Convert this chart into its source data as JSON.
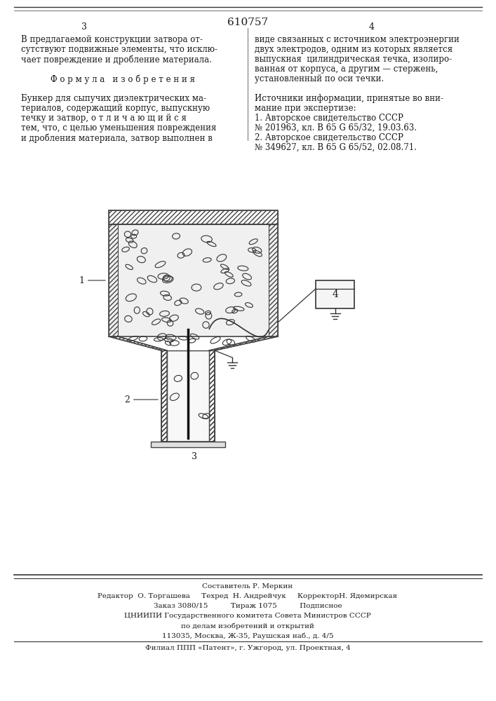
{
  "title_number": "610757",
  "page_left": "3",
  "page_right": "4",
  "text_left_col": [
    "В предлагаемой конструкции затвора от-",
    "сутствуют подвижные элементы, что исклю-",
    "чает повреждение и дробление материала.",
    "",
    "Ф о р м у л а   и з о б р е т е н и я",
    "",
    "Бункер для сыпучих диэлектрических ма-",
    "териалов, содержащий корпус, выпускную",
    "течку и затвор, о т л и ч а ю щ и й с я",
    "тем, что, с целью уменьшения повреждения",
    "и дробления материала, затвор выполнен в"
  ],
  "text_right_col": [
    "виде связанных с источником электроэнергии",
    "двух электродов, одним из которых является",
    "выпускная  цилиндрическая течка, изолиро-",
    "ванная от корпуса, а другим — стержень,",
    "установленный по оси течки.",
    "",
    "Источники информации, принятые во вни-",
    "мание при экспертизе:",
    "1. Авторское свидетельство СССР",
    "№ 201963, кл. B 65 G 65/32, 19.03.63.",
    "2. Авторское свидетельство СССР",
    "№ 349627, кл. B 65 G 65/52, 02.08.71."
  ],
  "footer_lines": [
    "Составитель Р. Меркин",
    "Редактор  О. Торгашева     Техред  Н. Андрейчук     КорректорН. Ядемирская",
    "Заказ 3080/15          Тираж 1075          Подписное",
    "ЦНИИПИ Государственного комитета Совета Министров СССР",
    "по делам изобретений и открытий",
    "113035, Москва, Ж-35, Раушская наб., д. 4/5",
    "Филиал ППП «Патент», г. Ужгород, ул. Проектная, 4"
  ],
  "bg_color": "#ffffff",
  "text_color": "#1a1a1a",
  "line_color": "#333333"
}
